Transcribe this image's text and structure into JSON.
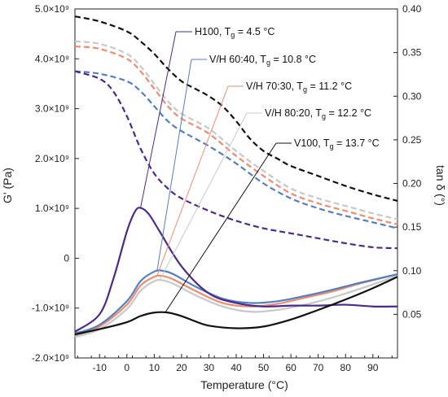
{
  "chart_data": {
    "type": "line",
    "xlabel": "Temperature (°C)",
    "ylabel_left": "G' (Pa)",
    "ylabel_right": "tan δ (°)",
    "xlim": [
      -19,
      99
    ],
    "ylim_left": [
      -2000000000.0,
      5000000000.0
    ],
    "ylim_right": [
      0.0,
      0.4
    ],
    "x_ticks": [
      -10,
      0,
      10,
      20,
      30,
      40,
      50,
      60,
      70,
      80,
      90
    ],
    "y_left_ticks": [
      {
        "v": 5000000000.0,
        "label": "5.0×10⁹"
      },
      {
        "v": 4000000000.0,
        "label": "4.0×10⁹"
      },
      {
        "v": 3000000000.0,
        "label": "3.0×10⁹"
      },
      {
        "v": 2000000000.0,
        "label": "2.0×10⁹"
      },
      {
        "v": 1000000000.0,
        "label": "1.0×10⁹"
      },
      {
        "v": 0,
        "label": "0"
      },
      {
        "v": -1000000000.0,
        "label": "-1.0×10⁹"
      },
      {
        "v": -2000000000.0,
        "label": "-2.0×10⁹"
      }
    ],
    "y_right_ticks": [
      {
        "v": 0.4,
        "label": "0.40"
      },
      {
        "v": 0.35,
        "label": "0.35"
      },
      {
        "v": 0.3,
        "label": "0.30"
      },
      {
        "v": 0.25,
        "label": "0.25"
      },
      {
        "v": 0.2,
        "label": "0.20"
      },
      {
        "v": 0.15,
        "label": "0.15"
      },
      {
        "v": 0.1,
        "label": "0.10"
      },
      {
        "v": 0.05,
        "label": "0.05"
      }
    ],
    "series": [
      {
        "name": "V100",
        "color": "#111111",
        "storage_modulus": [
          [
            -19,
            4850000000.0
          ],
          [
            -10,
            4750000000.0
          ],
          [
            0,
            4550000000.0
          ],
          [
            5,
            4350000000.0
          ],
          [
            10,
            4100000000.0
          ],
          [
            15,
            3800000000.0
          ],
          [
            20,
            3550000000.0
          ],
          [
            25,
            3400000000.0
          ],
          [
            30,
            3250000000.0
          ],
          [
            35,
            3050000000.0
          ],
          [
            40,
            2750000000.0
          ],
          [
            45,
            2400000000.0
          ],
          [
            50,
            2150000000.0
          ],
          [
            55,
            2000000000.0
          ],
          [
            60,
            1850000000.0
          ],
          [
            70,
            1650000000.0
          ],
          [
            80,
            1450000000.0
          ],
          [
            90,
            1280000000.0
          ],
          [
            99,
            1150000000.0
          ]
        ],
        "tan_delta": [
          [
            -19,
            0.027
          ],
          [
            -10,
            0.033
          ],
          [
            0,
            0.041
          ],
          [
            5,
            0.048
          ],
          [
            10,
            0.052
          ],
          [
            15,
            0.052
          ],
          [
            20,
            0.048
          ],
          [
            25,
            0.042
          ],
          [
            30,
            0.037
          ],
          [
            40,
            0.034
          ],
          [
            50,
            0.036
          ],
          [
            60,
            0.044
          ],
          [
            70,
            0.055
          ],
          [
            80,
            0.067
          ],
          [
            90,
            0.08
          ],
          [
            99,
            0.093
          ]
        ]
      },
      {
        "name": "H100",
        "color": "#4B2A8C",
        "storage_modulus": [
          [
            -19,
            3750000000.0
          ],
          [
            -10,
            3600000000.0
          ],
          [
            -5,
            3350000000.0
          ],
          [
            0,
            2850000000.0
          ],
          [
            5,
            2200000000.0
          ],
          [
            10,
            1700000000.0
          ],
          [
            15,
            1400000000.0
          ],
          [
            20,
            1200000000.0
          ],
          [
            30,
            950000000.0
          ],
          [
            40,
            750000000.0
          ],
          [
            50,
            600000000.0
          ],
          [
            60,
            500000000.0
          ],
          [
            70,
            400000000.0
          ],
          [
            80,
            300000000.0
          ],
          [
            90,
            220000000.0
          ],
          [
            99,
            200000000.0
          ]
        ],
        "tan_delta": [
          [
            -19,
            0.03
          ],
          [
            -10,
            0.05
          ],
          [
            -5,
            0.09
          ],
          [
            0,
            0.145
          ],
          [
            3,
            0.168
          ],
          [
            5,
            0.172
          ],
          [
            8,
            0.165
          ],
          [
            12,
            0.145
          ],
          [
            20,
            0.105
          ],
          [
            30,
            0.074
          ],
          [
            40,
            0.063
          ],
          [
            50,
            0.059
          ],
          [
            60,
            0.06
          ],
          [
            70,
            0.06
          ],
          [
            80,
            0.061
          ],
          [
            90,
            0.059
          ],
          [
            99,
            0.059
          ]
        ]
      },
      {
        "name": "V/H 60:40",
        "color": "#4F7FC4",
        "storage_modulus": [
          [
            -19,
            3750000000.0
          ],
          [
            -10,
            3700000000.0
          ],
          [
            0,
            3550000000.0
          ],
          [
            5,
            3350000000.0
          ],
          [
            10,
            3050000000.0
          ],
          [
            15,
            2750000000.0
          ],
          [
            20,
            2550000000.0
          ],
          [
            30,
            2250000000.0
          ],
          [
            40,
            1900000000.0
          ],
          [
            50,
            1500000000.0
          ],
          [
            60,
            1200000000.0
          ],
          [
            70,
            1000000000.0
          ],
          [
            80,
            850000000.0
          ],
          [
            90,
            720000000.0
          ],
          [
            99,
            600000000.0
          ]
        ],
        "tan_delta": [
          [
            -19,
            0.028
          ],
          [
            -10,
            0.038
          ],
          [
            0,
            0.065
          ],
          [
            5,
            0.088
          ],
          [
            10,
            0.099
          ],
          [
            13,
            0.1
          ],
          [
            17,
            0.096
          ],
          [
            25,
            0.082
          ],
          [
            35,
            0.068
          ],
          [
            45,
            0.063
          ],
          [
            55,
            0.065
          ],
          [
            65,
            0.071
          ],
          [
            75,
            0.078
          ],
          [
            85,
            0.086
          ],
          [
            99,
            0.096
          ]
        ]
      },
      {
        "name": "V/H 70:30",
        "color": "#F28A6E",
        "storage_modulus": [
          [
            -19,
            4250000000.0
          ],
          [
            -10,
            4200000000.0
          ],
          [
            0,
            4000000000.0
          ],
          [
            5,
            3750000000.0
          ],
          [
            10,
            3400000000.0
          ],
          [
            15,
            3050000000.0
          ],
          [
            20,
            2800000000.0
          ],
          [
            30,
            2500000000.0
          ],
          [
            40,
            2050000000.0
          ],
          [
            50,
            1650000000.0
          ],
          [
            60,
            1300000000.0
          ],
          [
            70,
            1100000000.0
          ],
          [
            80,
            950000000.0
          ],
          [
            90,
            800000000.0
          ],
          [
            99,
            680000000.0
          ]
        ],
        "tan_delta": [
          [
            -19,
            0.026
          ],
          [
            -10,
            0.036
          ],
          [
            0,
            0.061
          ],
          [
            5,
            0.083
          ],
          [
            10,
            0.093
          ],
          [
            13,
            0.094
          ],
          [
            17,
            0.09
          ],
          [
            25,
            0.077
          ],
          [
            35,
            0.063
          ],
          [
            45,
            0.059
          ],
          [
            55,
            0.062
          ],
          [
            65,
            0.069
          ],
          [
            75,
            0.076
          ],
          [
            85,
            0.085
          ],
          [
            99,
            0.096
          ]
        ]
      },
      {
        "name": "V/H 80:20",
        "color": "#C8C8C8",
        "storage_modulus": [
          [
            -19,
            4350000000.0
          ],
          [
            -10,
            4300000000.0
          ],
          [
            0,
            4100000000.0
          ],
          [
            5,
            3850000000.0
          ],
          [
            10,
            3500000000.0
          ],
          [
            15,
            3150000000.0
          ],
          [
            20,
            2900000000.0
          ],
          [
            30,
            2600000000.0
          ],
          [
            40,
            2150000000.0
          ],
          [
            50,
            1750000000.0
          ],
          [
            60,
            1400000000.0
          ],
          [
            70,
            1200000000.0
          ],
          [
            80,
            1050000000.0
          ],
          [
            90,
            900000000.0
          ],
          [
            99,
            780000000.0
          ]
        ],
        "tan_delta": [
          [
            -19,
            0.024
          ],
          [
            -10,
            0.033
          ],
          [
            0,
            0.056
          ],
          [
            5,
            0.077
          ],
          [
            10,
            0.088
          ],
          [
            13,
            0.089
          ],
          [
            17,
            0.085
          ],
          [
            25,
            0.072
          ],
          [
            35,
            0.059
          ],
          [
            45,
            0.053
          ],
          [
            55,
            0.055
          ],
          [
            65,
            0.061
          ],
          [
            75,
            0.069
          ],
          [
            85,
            0.079
          ],
          [
            99,
            0.094
          ]
        ]
      }
    ],
    "annotations": [
      {
        "series": "H100",
        "text": "H100, Tg = 4.5 °C",
        "main": "H100, T",
        "sub": "g",
        "tail": " = 4.5 °C",
        "x": 5,
        "tan_delta": 0.172
      },
      {
        "series": "V/H 60:40",
        "text": "V/H 60:40, Tg = 10.8 °C",
        "main": "V/H 60:40, T",
        "sub": "g",
        "tail": " = 10.8 °C",
        "x": 11,
        "tan_delta": 0.099
      },
      {
        "series": "V/H 70:30",
        "text": "V/H 70:30, Tg = 11.2 °C",
        "main": "V/H 70:30, T",
        "sub": "g",
        "tail": " = 11.2 °C",
        "x": 11,
        "tan_delta": 0.094
      },
      {
        "series": "V/H 80:20",
        "text": "V/H 80:20, Tg = 12.2 °C",
        "main": "V/H 80:20, T",
        "sub": "g",
        "tail": " = 12.2 °C",
        "x": 12,
        "tan_delta": 0.089
      },
      {
        "series": "V100",
        "text": "V100, Tg = 13.7 °C",
        "main": "V100, T",
        "sub": "g",
        "tail": " = 13.7 °C",
        "x": 14,
        "tan_delta": 0.052
      }
    ],
    "grid": false,
    "legend": "none",
    "line_styles": {
      "storage_modulus": "dashed",
      "tan_delta": "solid"
    }
  }
}
